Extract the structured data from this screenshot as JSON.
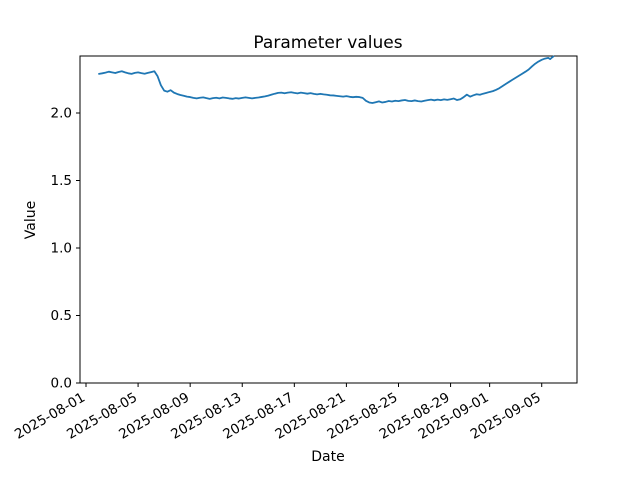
{
  "chart_data": {
    "type": "line",
    "title": "Parameter values",
    "xlabel": "Date",
    "ylabel": "Value",
    "grid": false,
    "legend": "none",
    "background_color": "#ffffff",
    "axis_color": "#000000",
    "line_color": "#1f77b4",
    "x_epoch": "2025-08-01",
    "xlim_days": [
      -0.461,
      37.71
    ],
    "ylim": [
      0,
      2.4222
    ],
    "xticks": [
      {
        "day": 0,
        "label": "2025-08-01"
      },
      {
        "day": 4,
        "label": "2025-08-05"
      },
      {
        "day": 8,
        "label": "2025-08-09"
      },
      {
        "day": 12,
        "label": "2025-08-13"
      },
      {
        "day": 16,
        "label": "2025-08-17"
      },
      {
        "day": 20,
        "label": "2025-08-21"
      },
      {
        "day": 24,
        "label": "2025-08-25"
      },
      {
        "day": 28,
        "label": "2025-08-29"
      },
      {
        "day": 31,
        "label": "2025-09-01"
      },
      {
        "day": 35,
        "label": "2025-09-05"
      }
    ],
    "yticks": [
      {
        "value": 0.0,
        "label": "0.0"
      },
      {
        "value": 0.5,
        "label": "0.5"
      },
      {
        "value": 1.0,
        "label": "1.0"
      },
      {
        "value": 1.5,
        "label": "1.5"
      },
      {
        "value": 2.0,
        "label": "2.0"
      }
    ],
    "series": [
      {
        "name": "parameter-value",
        "points": [
          [
            1.0,
            2.29
          ],
          [
            1.25,
            2.294
          ],
          [
            1.5,
            2.299
          ],
          [
            1.75,
            2.306
          ],
          [
            2.0,
            2.301
          ],
          [
            2.25,
            2.296
          ],
          [
            2.5,
            2.304
          ],
          [
            2.75,
            2.309
          ],
          [
            3.0,
            2.301
          ],
          [
            3.25,
            2.294
          ],
          [
            3.5,
            2.29
          ],
          [
            3.75,
            2.297
          ],
          [
            4.0,
            2.301
          ],
          [
            4.25,
            2.295
          ],
          [
            4.5,
            2.291
          ],
          [
            4.75,
            2.297
          ],
          [
            5.0,
            2.303
          ],
          [
            5.25,
            2.309
          ],
          [
            5.5,
            2.272
          ],
          [
            5.75,
            2.206
          ],
          [
            6.0,
            2.166
          ],
          [
            6.25,
            2.158
          ],
          [
            6.5,
            2.169
          ],
          [
            6.75,
            2.151
          ],
          [
            7.0,
            2.141
          ],
          [
            7.25,
            2.133
          ],
          [
            7.5,
            2.128
          ],
          [
            7.75,
            2.121
          ],
          [
            8.0,
            2.118
          ],
          [
            8.25,
            2.112
          ],
          [
            8.5,
            2.108
          ],
          [
            8.75,
            2.113
          ],
          [
            9.0,
            2.116
          ],
          [
            9.25,
            2.11
          ],
          [
            9.5,
            2.105
          ],
          [
            9.75,
            2.11
          ],
          [
            10.0,
            2.113
          ],
          [
            10.25,
            2.108
          ],
          [
            10.5,
            2.115
          ],
          [
            10.75,
            2.112
          ],
          [
            11.0,
            2.108
          ],
          [
            11.25,
            2.105
          ],
          [
            11.5,
            2.11
          ],
          [
            11.75,
            2.107
          ],
          [
            12.0,
            2.112
          ],
          [
            12.25,
            2.116
          ],
          [
            12.5,
            2.112
          ],
          [
            12.75,
            2.108
          ],
          [
            13.0,
            2.112
          ],
          [
            13.25,
            2.115
          ],
          [
            13.5,
            2.119
          ],
          [
            13.75,
            2.123
          ],
          [
            14.0,
            2.129
          ],
          [
            14.25,
            2.136
          ],
          [
            14.5,
            2.143
          ],
          [
            14.75,
            2.149
          ],
          [
            15.0,
            2.151
          ],
          [
            15.25,
            2.146
          ],
          [
            15.5,
            2.151
          ],
          [
            15.75,
            2.154
          ],
          [
            16.0,
            2.149
          ],
          [
            16.25,
            2.145
          ],
          [
            16.5,
            2.151
          ],
          [
            16.75,
            2.147
          ],
          [
            17.0,
            2.143
          ],
          [
            17.25,
            2.147
          ],
          [
            17.5,
            2.142
          ],
          [
            17.75,
            2.138
          ],
          [
            18.0,
            2.142
          ],
          [
            18.25,
            2.138
          ],
          [
            18.5,
            2.135
          ],
          [
            18.75,
            2.131
          ],
          [
            19.0,
            2.13
          ],
          [
            19.25,
            2.127
          ],
          [
            19.5,
            2.124
          ],
          [
            19.75,
            2.121
          ],
          [
            20.0,
            2.125
          ],
          [
            20.25,
            2.12
          ],
          [
            20.5,
            2.117
          ],
          [
            20.75,
            2.12
          ],
          [
            21.0,
            2.118
          ],
          [
            21.25,
            2.112
          ],
          [
            21.5,
            2.09
          ],
          [
            21.75,
            2.078
          ],
          [
            22.0,
            2.074
          ],
          [
            22.25,
            2.08
          ],
          [
            22.5,
            2.086
          ],
          [
            22.75,
            2.078
          ],
          [
            23.0,
            2.082
          ],
          [
            23.25,
            2.089
          ],
          [
            23.5,
            2.085
          ],
          [
            23.75,
            2.091
          ],
          [
            24.0,
            2.088
          ],
          [
            24.25,
            2.093
          ],
          [
            24.5,
            2.096
          ],
          [
            24.75,
            2.09
          ],
          [
            25.0,
            2.088
          ],
          [
            25.25,
            2.093
          ],
          [
            25.5,
            2.088
          ],
          [
            25.75,
            2.085
          ],
          [
            26.0,
            2.091
          ],
          [
            26.25,
            2.095
          ],
          [
            26.5,
            2.099
          ],
          [
            26.75,
            2.094
          ],
          [
            27.0,
            2.099
          ],
          [
            27.25,
            2.095
          ],
          [
            27.5,
            2.101
          ],
          [
            27.75,
            2.097
          ],
          [
            28.0,
            2.102
          ],
          [
            28.25,
            2.107
          ],
          [
            28.5,
            2.096
          ],
          [
            28.75,
            2.102
          ],
          [
            29.0,
            2.117
          ],
          [
            29.25,
            2.136
          ],
          [
            29.5,
            2.121
          ],
          [
            29.75,
            2.131
          ],
          [
            30.0,
            2.139
          ],
          [
            30.25,
            2.135
          ],
          [
            30.5,
            2.143
          ],
          [
            30.75,
            2.149
          ],
          [
            31.0,
            2.156
          ],
          [
            31.25,
            2.162
          ],
          [
            31.5,
            2.172
          ],
          [
            31.75,
            2.184
          ],
          [
            32.0,
            2.2
          ],
          [
            32.25,
            2.216
          ],
          [
            32.5,
            2.231
          ],
          [
            32.75,
            2.246
          ],
          [
            33.0,
            2.261
          ],
          [
            33.25,
            2.276
          ],
          [
            33.5,
            2.291
          ],
          [
            33.75,
            2.306
          ],
          [
            34.0,
            2.322
          ],
          [
            34.25,
            2.345
          ],
          [
            34.5,
            2.365
          ],
          [
            34.75,
            2.381
          ],
          [
            35.0,
            2.394
          ],
          [
            35.25,
            2.403
          ],
          [
            35.5,
            2.408
          ],
          [
            35.65,
            2.399
          ],
          [
            35.8,
            2.412
          ],
          [
            35.9,
            2.419
          ]
        ]
      }
    ]
  }
}
